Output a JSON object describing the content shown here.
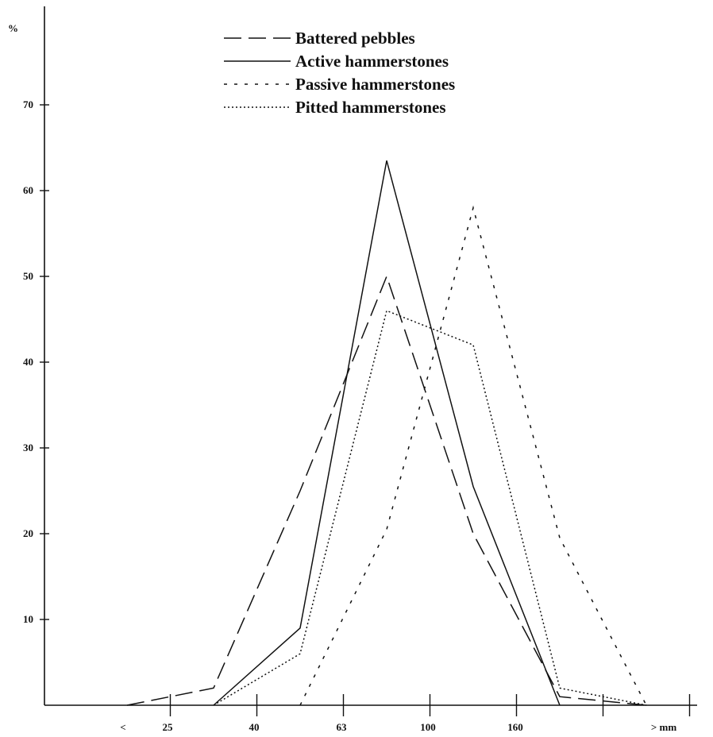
{
  "chart_data": {
    "type": "line",
    "ylabel": "%",
    "y_ticks": [
      "10",
      "20",
      "30",
      "40",
      "50",
      "60",
      "70"
    ],
    "ylim": [
      0,
      80
    ],
    "x_tick_labels": [
      "<",
      "25",
      "40",
      "63",
      "100",
      "160",
      "> mm"
    ],
    "x_positions": [
      0,
      1,
      2,
      3,
      4,
      5,
      6,
      7
    ],
    "grid": false,
    "legend_position": "top-center",
    "series": [
      {
        "name": "Battered pebbles",
        "dash": "dashed",
        "x": [
          0,
          1,
          2,
          3,
          4,
          5,
          6
        ],
        "values": [
          0,
          2,
          25,
          50,
          20,
          1,
          0
        ]
      },
      {
        "name": "Active hammerstones",
        "dash": "solid",
        "x": [
          1,
          2,
          3,
          4,
          5
        ],
        "values": [
          0,
          9,
          63.5,
          25.5,
          0
        ]
      },
      {
        "name": "Passive hammerstones",
        "dash": "short-dashed",
        "x": [
          2,
          3,
          4,
          5,
          6
        ],
        "values": [
          0,
          20.5,
          58,
          19.5,
          0
        ]
      },
      {
        "name": "Pitted hammerstones",
        "dash": "dotted",
        "x": [
          1,
          2,
          3,
          4,
          5,
          6
        ],
        "values": [
          0,
          6,
          46,
          42,
          2,
          0
        ]
      }
    ]
  }
}
